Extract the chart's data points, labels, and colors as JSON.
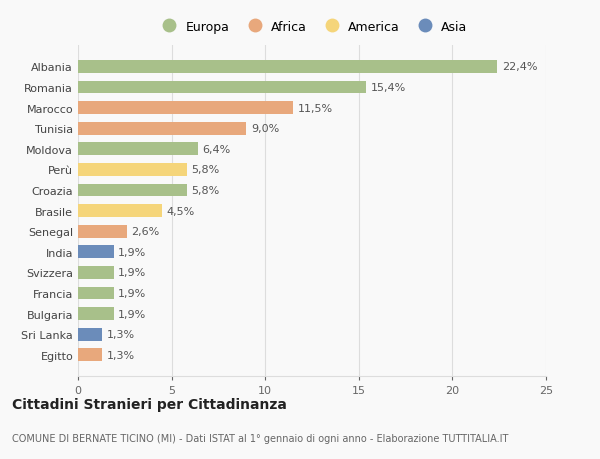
{
  "countries": [
    "Albania",
    "Romania",
    "Marocco",
    "Tunisia",
    "Moldova",
    "Perù",
    "Croazia",
    "Brasile",
    "Senegal",
    "India",
    "Svizzera",
    "Francia",
    "Bulgaria",
    "Sri Lanka",
    "Egitto"
  ],
  "values": [
    22.4,
    15.4,
    11.5,
    9.0,
    6.4,
    5.8,
    5.8,
    4.5,
    2.6,
    1.9,
    1.9,
    1.9,
    1.9,
    1.3,
    1.3
  ],
  "labels": [
    "22,4%",
    "15,4%",
    "11,5%",
    "9,0%",
    "6,4%",
    "5,8%",
    "5,8%",
    "4,5%",
    "2,6%",
    "1,9%",
    "1,9%",
    "1,9%",
    "1,9%",
    "1,3%",
    "1,3%"
  ],
  "continents": [
    "Europa",
    "Europa",
    "Africa",
    "Africa",
    "Europa",
    "America",
    "Europa",
    "America",
    "Africa",
    "Asia",
    "Europa",
    "Europa",
    "Europa",
    "Asia",
    "Africa"
  ],
  "colors": {
    "Europa": "#a8c08a",
    "Africa": "#e8a87c",
    "America": "#f5d57a",
    "Asia": "#6b8cba"
  },
  "xlim": [
    0,
    25
  ],
  "xticks": [
    0,
    5,
    10,
    15,
    20,
    25
  ],
  "title": "Cittadini Stranieri per Cittadinanza",
  "subtitle": "COMUNE DI BERNATE TICINO (MI) - Dati ISTAT al 1° gennaio di ogni anno - Elaborazione TUTTITALIA.IT",
  "bg_color": "#f9f9f9",
  "grid_color": "#dddddd",
  "bar_height": 0.62,
  "label_fontsize": 8,
  "title_fontsize": 10,
  "subtitle_fontsize": 7,
  "ytick_fontsize": 8,
  "xtick_fontsize": 8,
  "legend_order": [
    "Europa",
    "Africa",
    "America",
    "Asia"
  ]
}
